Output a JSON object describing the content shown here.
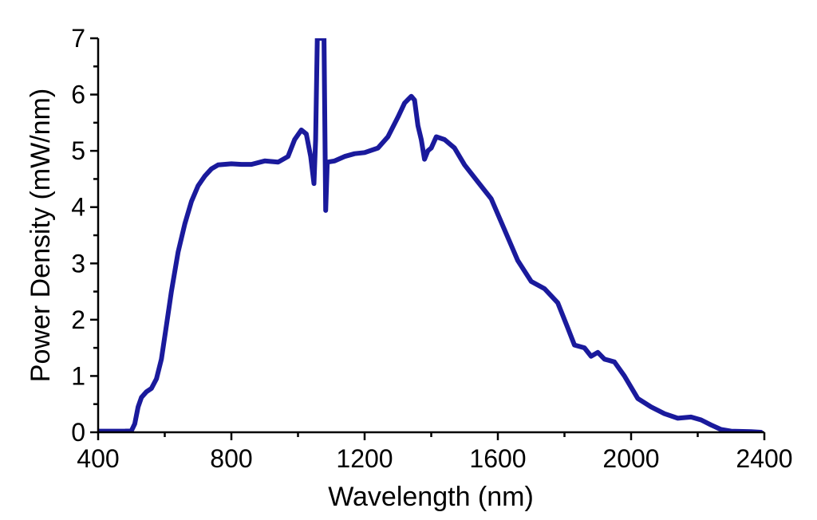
{
  "chart_data": {
    "type": "line",
    "xlabel": "Wavelength (nm)",
    "ylabel": "Power Density (mW/nm)",
    "xlim": [
      400,
      2400
    ],
    "ylim": [
      0,
      7
    ],
    "x_ticks": [
      400,
      800,
      1200,
      1600,
      2000,
      2400
    ],
    "x_tick_labels": [
      "400",
      "800",
      "1200",
      "1600",
      "2000",
      "2400"
    ],
    "y_ticks": [
      0,
      1,
      2,
      3,
      4,
      5,
      6,
      7
    ],
    "y_tick_labels": [
      "0",
      "1",
      "2",
      "3",
      "4",
      "5",
      "6",
      "7"
    ],
    "grid": false,
    "line_color": "#1a1a9c",
    "series": [
      {
        "points": [
          [
            400,
            0.02
          ],
          [
            480,
            0.02
          ],
          [
            500,
            0.03
          ],
          [
            510,
            0.15
          ],
          [
            520,
            0.45
          ],
          [
            530,
            0.62
          ],
          [
            545,
            0.72
          ],
          [
            560,
            0.78
          ],
          [
            575,
            0.95
          ],
          [
            590,
            1.3
          ],
          [
            605,
            1.9
          ],
          [
            620,
            2.5
          ],
          [
            640,
            3.2
          ],
          [
            660,
            3.7
          ],
          [
            680,
            4.1
          ],
          [
            700,
            4.38
          ],
          [
            720,
            4.55
          ],
          [
            740,
            4.68
          ],
          [
            760,
            4.75
          ],
          [
            800,
            4.77
          ],
          [
            830,
            4.76
          ],
          [
            860,
            4.76
          ],
          [
            900,
            4.82
          ],
          [
            940,
            4.8
          ],
          [
            970,
            4.9
          ],
          [
            990,
            5.2
          ],
          [
            1010,
            5.37
          ],
          [
            1025,
            5.3
          ],
          [
            1038,
            4.9
          ],
          [
            1048,
            4.42
          ],
          [
            1053,
            5.2
          ],
          [
            1058,
            7.0
          ],
          [
            1068,
            7.0
          ],
          [
            1078,
            7.0
          ],
          [
            1083,
            3.94
          ],
          [
            1088,
            4.8
          ],
          [
            1110,
            4.82
          ],
          [
            1140,
            4.9
          ],
          [
            1170,
            4.95
          ],
          [
            1200,
            4.97
          ],
          [
            1240,
            5.05
          ],
          [
            1270,
            5.25
          ],
          [
            1300,
            5.6
          ],
          [
            1320,
            5.85
          ],
          [
            1340,
            5.97
          ],
          [
            1350,
            5.9
          ],
          [
            1360,
            5.45
          ],
          [
            1370,
            5.2
          ],
          [
            1380,
            4.85
          ],
          [
            1390,
            5.0
          ],
          [
            1400,
            5.05
          ],
          [
            1415,
            5.25
          ],
          [
            1440,
            5.2
          ],
          [
            1470,
            5.05
          ],
          [
            1500,
            4.75
          ],
          [
            1540,
            4.45
          ],
          [
            1580,
            4.15
          ],
          [
            1620,
            3.6
          ],
          [
            1660,
            3.05
          ],
          [
            1700,
            2.68
          ],
          [
            1740,
            2.55
          ],
          [
            1780,
            2.3
          ],
          [
            1810,
            1.85
          ],
          [
            1830,
            1.55
          ],
          [
            1860,
            1.5
          ],
          [
            1880,
            1.35
          ],
          [
            1900,
            1.42
          ],
          [
            1920,
            1.3
          ],
          [
            1950,
            1.25
          ],
          [
            1980,
            1.0
          ],
          [
            2020,
            0.6
          ],
          [
            2060,
            0.45
          ],
          [
            2100,
            0.33
          ],
          [
            2140,
            0.25
          ],
          [
            2180,
            0.27
          ],
          [
            2210,
            0.22
          ],
          [
            2240,
            0.13
          ],
          [
            2270,
            0.05
          ],
          [
            2300,
            0.02
          ],
          [
            2360,
            0.01
          ],
          [
            2390,
            0.0
          ]
        ]
      }
    ]
  }
}
